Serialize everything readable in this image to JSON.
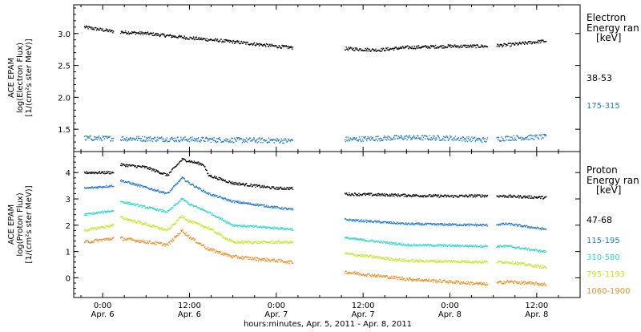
{
  "colors": {
    "axis": "#000000",
    "c38_53": "#000000",
    "c175_315": "#1e78d2",
    "c47_68": "#000000",
    "c115_195": "#1e78d2",
    "c310_580": "#28d8cc",
    "c795_1193": "#c6e61e",
    "c1060_1900": "#f08c1e"
  },
  "chart_data": [
    {
      "type": "scatter",
      "panel": "electron",
      "ylabel": [
        "ACE EPAM",
        "log(Electron Flux)",
        "[1/(cm²s ster MeV)]"
      ],
      "ylim": [
        1.15,
        3.45
      ],
      "yticks": [
        1.5,
        2.0,
        2.5,
        3.0
      ],
      "ytick_labels": [
        "1.5",
        "2.0",
        "2.5",
        "3.0"
      ],
      "legend_title": [
        "Electron",
        "Energy ran",
        "[keV]"
      ],
      "series": [
        {
          "name": "38-53",
          "color_key": "c38_53",
          "anchors": [
            [
              -2.5,
              3.1
            ],
            [
              1.5,
              3.03
            ],
            [
              6,
              3.0
            ],
            [
              12,
              2.93
            ],
            [
              18,
              2.87
            ],
            [
              24,
              2.8
            ],
            [
              26,
              2.78
            ],
            [
              34,
              2.76
            ],
            [
              38,
              2.74
            ],
            [
              42,
              2.78
            ],
            [
              48,
              2.8
            ],
            [
              53,
              2.8
            ],
            [
              56,
              2.82
            ],
            [
              61,
              2.88
            ]
          ],
          "noise": 0.025
        },
        {
          "name": "175-315",
          "color_key": "c175_315",
          "anchors": [
            [
              -2.5,
              1.36
            ],
            [
              6,
              1.35
            ],
            [
              18,
              1.33
            ],
            [
              26,
              1.32
            ],
            [
              34,
              1.34
            ],
            [
              42,
              1.37
            ],
            [
              48,
              1.36
            ],
            [
              53,
              1.33
            ],
            [
              56,
              1.36
            ],
            [
              61,
              1.38
            ]
          ],
          "noise": 0.04
        }
      ]
    },
    {
      "type": "scatter",
      "panel": "proton",
      "ylabel": [
        "ACE EPAM",
        "log(Proton Flux)",
        "[1/(cm²s ster MeV)]"
      ],
      "ylim": [
        -0.75,
        4.8
      ],
      "yticks": [
        0,
        1,
        2,
        3,
        4
      ],
      "ytick_labels": [
        "0",
        "1",
        "2",
        "3",
        "4"
      ],
      "legend_title": [
        "Proton",
        "Energy ran",
        "[keV]"
      ],
      "series": [
        {
          "name": "47-68",
          "color_key": "c47_68",
          "anchors": [
            [
              -2.5,
              4.0
            ],
            [
              1.5,
              4.0
            ],
            [
              2.5,
              4.3
            ],
            [
              6,
              4.2
            ],
            [
              9,
              3.9
            ],
            [
              11,
              4.5
            ],
            [
              14,
              4.3
            ],
            [
              14.6,
              3.9
            ],
            [
              18,
              3.6
            ],
            [
              24,
              3.4
            ],
            [
              26,
              3.4
            ],
            [
              34,
              3.18
            ],
            [
              48,
              3.1
            ],
            [
              53,
              3.12
            ],
            [
              56,
              3.1
            ],
            [
              61,
              3.05
            ]
          ],
          "noise": 0.05
        },
        {
          "name": "115-195",
          "color_key": "c115_195",
          "anchors": [
            [
              -2.5,
              3.4
            ],
            [
              1.5,
              3.5
            ],
            [
              2.5,
              3.7
            ],
            [
              9,
              3.2
            ],
            [
              11,
              3.8
            ],
            [
              12,
              3.6
            ],
            [
              14.6,
              3.2
            ],
            [
              18,
              2.9
            ],
            [
              26,
              2.6
            ],
            [
              34,
              2.2
            ],
            [
              42,
              2.05
            ],
            [
              53,
              2.0
            ],
            [
              56,
              2.05
            ],
            [
              61,
              1.85
            ]
          ],
          "noise": 0.04
        },
        {
          "name": "310-580",
          "color_key": "c310_580",
          "anchors": [
            [
              -2.5,
              2.4
            ],
            [
              1.5,
              2.55
            ],
            [
              2.5,
              2.9
            ],
            [
              9,
              2.5
            ],
            [
              11,
              3.0
            ],
            [
              12,
              2.8
            ],
            [
              14.6,
              2.5
            ],
            [
              18,
              2.0
            ],
            [
              26,
              1.85
            ],
            [
              34,
              1.5
            ],
            [
              42,
              1.25
            ],
            [
              53,
              1.2
            ],
            [
              56,
              1.2
            ],
            [
              61,
              1.0
            ]
          ],
          "noise": 0.04
        },
        {
          "name": "795-1193",
          "color_key": "c795_1193",
          "anchors": [
            [
              -2.5,
              1.8
            ],
            [
              1.5,
              2.0
            ],
            [
              2.5,
              2.3
            ],
            [
              9,
              1.8
            ],
            [
              11,
              2.35
            ],
            [
              12,
              2.15
            ],
            [
              14.6,
              1.9
            ],
            [
              18,
              1.35
            ],
            [
              26,
              1.35
            ],
            [
              34,
              0.9
            ],
            [
              42,
              0.65
            ],
            [
              53,
              0.6
            ],
            [
              56,
              0.6
            ],
            [
              61,
              0.4
            ]
          ],
          "noise": 0.05
        },
        {
          "name": "1060-1900",
          "color_key": "c1060_1900",
          "anchors": [
            [
              -2.5,
              1.35
            ],
            [
              1.5,
              1.5
            ],
            [
              2.5,
              1.5
            ],
            [
              9,
              1.25
            ],
            [
              11,
              1.8
            ],
            [
              12,
              1.55
            ],
            [
              14.6,
              1.1
            ],
            [
              18,
              0.8
            ],
            [
              26,
              0.6
            ],
            [
              34,
              0.2
            ],
            [
              42,
              -0.05
            ],
            [
              48,
              -0.15
            ],
            [
              53,
              -0.25
            ],
            [
              56,
              -0.15
            ],
            [
              61,
              -0.25
            ]
          ],
          "noise": 0.06
        }
      ]
    }
  ],
  "time_axis": {
    "xlim": [
      -4,
      66
    ],
    "data_segments": [
      [
        -2.5,
        1.5
      ],
      [
        2.5,
        26.3
      ],
      [
        33.5,
        53.2
      ],
      [
        54.5,
        61.3
      ]
    ],
    "ticks": [
      {
        "h": 0,
        "time": "0:00",
        "date": "Apr. 6"
      },
      {
        "h": 12,
        "time": "12:00",
        "date": "Apr. 6"
      },
      {
        "h": 24,
        "time": "0:00",
        "date": "Apr. 7"
      },
      {
        "h": 36,
        "time": "12:00",
        "date": "Apr. 7"
      },
      {
        "h": 48,
        "time": "0:00",
        "date": "Apr. 8"
      },
      {
        "h": 60,
        "time": "12:00",
        "date": "Apr. 8"
      }
    ],
    "minor_step_h": 3,
    "xlabel": "hours:minutes, Apr.  5, 2011 - Apr.  8, 2011"
  }
}
